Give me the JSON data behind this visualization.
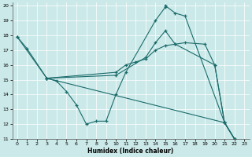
{
  "xlabel": "Humidex (Indice chaleur)",
  "xlim": [
    -0.5,
    23.5
  ],
  "ylim": [
    11,
    20.2
  ],
  "xticks": [
    0,
    1,
    2,
    3,
    4,
    5,
    6,
    7,
    8,
    9,
    10,
    11,
    12,
    13,
    14,
    15,
    16,
    17,
    18,
    19,
    20,
    21,
    22,
    23
  ],
  "yticks": [
    11,
    12,
    13,
    14,
    15,
    16,
    17,
    18,
    19,
    20
  ],
  "background_color": "#cce9e9",
  "line_color": "#1a6b6b",
  "grid_color": "#ffffff",
  "series": [
    {
      "x": [
        0,
        1,
        3,
        4,
        5,
        6,
        7,
        8,
        9,
        10,
        11,
        14,
        15,
        15,
        16,
        17,
        21,
        22,
        23
      ],
      "y": [
        17.9,
        17.1,
        15.1,
        14.9,
        14.2,
        13.3,
        12.0,
        12.2,
        12.2,
        14.0,
        15.5,
        19.0,
        19.9,
        20.0,
        19.5,
        19.3,
        12.1,
        11.0,
        10.8
      ]
    },
    {
      "x": [
        3,
        10,
        11,
        12,
        13,
        14,
        15,
        16,
        17,
        19,
        20,
        21,
        22,
        23
      ],
      "y": [
        15.1,
        15.5,
        16.0,
        16.2,
        16.4,
        17.0,
        17.3,
        17.4,
        17.5,
        17.4,
        16.0,
        12.1,
        11.0,
        10.8
      ]
    },
    {
      "x": [
        3,
        10,
        13,
        14,
        15,
        16,
        20,
        21,
        22,
        23
      ],
      "y": [
        15.1,
        15.3,
        16.5,
        17.5,
        18.3,
        17.4,
        16.0,
        12.1,
        11.0,
        10.8
      ]
    },
    {
      "x": [
        0,
        3,
        21,
        22,
        23
      ],
      "y": [
        17.9,
        15.1,
        12.1,
        11.0,
        10.8
      ]
    }
  ]
}
